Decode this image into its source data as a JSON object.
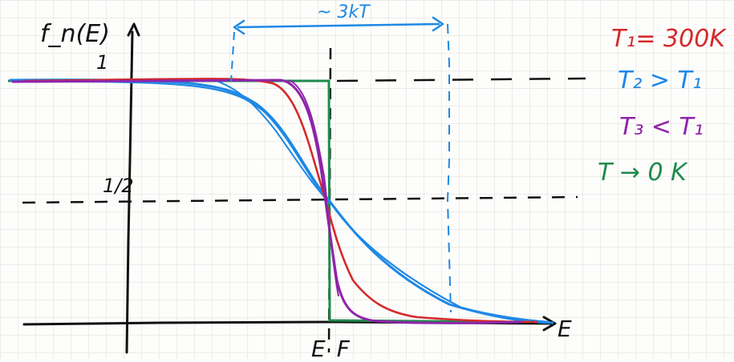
{
  "labels": {
    "y_axis": "f_n(E)",
    "tick_one": "1",
    "tick_half": "1/2",
    "x_axis": "E",
    "fermi": "E_F",
    "width": "~ 3kT"
  },
  "legend": [
    {
      "text": "T₁= 300K",
      "color": "#d42a2a"
    },
    {
      "text": "T₂ > T₁",
      "color": "#1e88e5"
    },
    {
      "text": "T₃ < T₁",
      "color": "#8e24aa"
    },
    {
      "text": "T → 0 K",
      "color": "#1f8a4c"
    }
  ],
  "colors": {
    "ink": "#111111",
    "grid": "#dcdcdc",
    "red": "#d42a2a",
    "blue": "#1e88e5",
    "purple": "#8e24aa",
    "green": "#1f8a4c"
  }
}
